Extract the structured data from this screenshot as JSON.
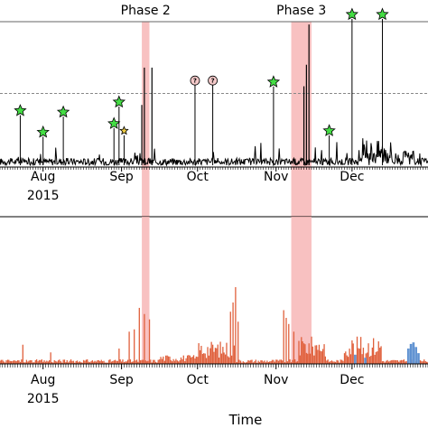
{
  "chart_data": [
    {
      "panel": "top",
      "type": "line",
      "x_axis": {
        "start": "2015-07-15",
        "end": "2015-12-31",
        "ticks": [
          {
            "date": "2015-08-01",
            "label": "Aug"
          },
          {
            "date": "2015-09-01",
            "label": "Sep"
          },
          {
            "date": "2015-10-01",
            "label": "Oct"
          },
          {
            "date": "2015-11-01",
            "label": "Nov"
          },
          {
            "date": "2015-12-01",
            "label": "Dec"
          }
        ],
        "year_label": "2015"
      },
      "reference_lines": [
        {
          "style": "solid",
          "level": 1.0
        },
        {
          "style": "dashed",
          "level": 0.5
        }
      ],
      "shaded_regions": [
        {
          "label": "Phase 2",
          "start": "2015-09-09",
          "end": "2015-09-12"
        },
        {
          "label": "Phase 3",
          "start": "2015-11-07",
          "end": "2015-11-15"
        }
      ],
      "spikes": [
        {
          "date": "2015-09-09",
          "value": 0.42
        },
        {
          "date": "2015-09-10",
          "value": 0.68
        },
        {
          "date": "2015-09-13",
          "value": 0.68
        },
        {
          "date": "2015-11-12",
          "value": 0.55
        },
        {
          "date": "2015-11-13",
          "value": 0.7
        },
        {
          "date": "2015-11-14",
          "value": 0.98
        }
      ],
      "markers": [
        {
          "date": "2015-07-23",
          "value": 0.38,
          "symbol": "star",
          "color": "#44dd44"
        },
        {
          "date": "2015-08-01",
          "value": 0.23,
          "symbol": "star",
          "color": "#44dd44"
        },
        {
          "date": "2015-08-09",
          "value": 0.37,
          "symbol": "star",
          "color": "#44dd44"
        },
        {
          "date": "2015-08-29",
          "value": 0.29,
          "symbol": "star",
          "color": "#44dd44"
        },
        {
          "date": "2015-08-31",
          "value": 0.44,
          "symbol": "star",
          "color": "#44dd44"
        },
        {
          "date": "2015-09-02",
          "value": 0.24,
          "symbol": "star",
          "color": "#eecc44"
        },
        {
          "date": "2015-09-30",
          "value": 0.59,
          "symbol": "question",
          "label": "?"
        },
        {
          "date": "2015-10-07",
          "value": 0.59,
          "symbol": "question",
          "label": "?"
        },
        {
          "date": "2015-10-31",
          "value": 0.58,
          "symbol": "star",
          "color": "#44dd44"
        },
        {
          "date": "2015-11-22",
          "value": 0.24,
          "symbol": "star",
          "color": "#44dd44"
        },
        {
          "date": "2015-12-01",
          "value": 1.05,
          "symbol": "star",
          "color": "#44dd44"
        },
        {
          "date": "2015-12-13",
          "value": 1.05,
          "symbol": "star",
          "color": "#44dd44"
        }
      ],
      "line_color": "#000000"
    },
    {
      "panel": "bottom",
      "type": "bar",
      "x_axis_title": "Time",
      "x_axis": {
        "ticks": [
          {
            "date": "2015-08-01",
            "label": "Aug"
          },
          {
            "date": "2015-09-01",
            "label": "Sep"
          },
          {
            "date": "2015-10-01",
            "label": "Oct"
          },
          {
            "date": "2015-11-01",
            "label": "Nov"
          },
          {
            "date": "2015-12-01",
            "label": "Dec"
          }
        ],
        "year_label": "2015"
      },
      "shaded_regions": [
        {
          "start": "2015-09-09",
          "end": "2015-09-12"
        },
        {
          "start": "2015-11-07",
          "end": "2015-11-15"
        }
      ],
      "series_colors": {
        "primary": "#e0603c",
        "secondary": "#5b8fd0"
      },
      "highlights": [
        {
          "date": "2015-07-24",
          "value": 0.25
        },
        {
          "date": "2015-08-04",
          "value": 0.15
        },
        {
          "date": "2015-08-31",
          "value": 0.2
        },
        {
          "date": "2015-09-04",
          "value": 0.42
        },
        {
          "date": "2015-09-06",
          "value": 0.45
        },
        {
          "date": "2015-09-08",
          "value": 0.73
        },
        {
          "date": "2015-09-10",
          "value": 0.65
        },
        {
          "date": "2015-09-12",
          "value": 0.58
        },
        {
          "date": "2015-10-14",
          "value": 0.68
        },
        {
          "date": "2015-10-16",
          "value": 1.0
        },
        {
          "date": "2015-10-15",
          "value": 0.8
        },
        {
          "date": "2015-10-17",
          "value": 0.55
        },
        {
          "date": "2015-11-04",
          "value": 0.7
        },
        {
          "date": "2015-11-05",
          "value": 0.6
        },
        {
          "date": "2015-11-06",
          "value": 0.52
        },
        {
          "date": "2015-11-08",
          "value": 0.42
        },
        {
          "date": "2015-11-10",
          "value": 0.3
        },
        {
          "date": "2015-11-18",
          "value": 0.25
        }
      ],
      "blue_bars": [
        {
          "date": "2015-12-02",
          "value": 0.12
        },
        {
          "date": "2015-12-06",
          "value": 0.08
        },
        {
          "date": "2015-12-23",
          "value": 0.2
        },
        {
          "date": "2015-12-24",
          "value": 0.26
        },
        {
          "date": "2015-12-25",
          "value": 0.28
        },
        {
          "date": "2015-12-26",
          "value": 0.22
        },
        {
          "date": "2015-12-27",
          "value": 0.14
        }
      ]
    }
  ]
}
